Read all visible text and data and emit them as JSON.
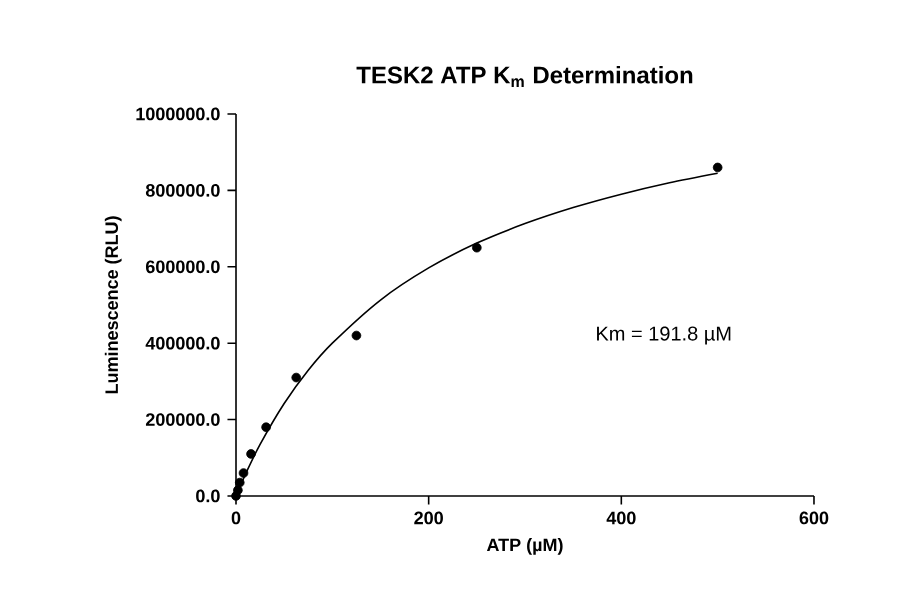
{
  "chart_data": {
    "type": "scatter",
    "title": "TESK2 ATP K$_{m}$ Determination",
    "xlabel": "ATP (µM)",
    "ylabel": "Luminescence (RLU)",
    "xlim": [
      0,
      600
    ],
    "xticks": [
      0,
      200,
      400,
      600
    ],
    "ylim": [
      0,
      1000000
    ],
    "yticks": [
      {
        "value": 0,
        "label": "0.0"
      },
      {
        "value": 200000,
        "label": "200000.0"
      },
      {
        "value": 400000,
        "label": "400000.0"
      },
      {
        "value": 600000,
        "label": "600000.0"
      },
      {
        "value": 800000,
        "label": "800000.0"
      },
      {
        "value": 1000000,
        "label": "1000000.0"
      }
    ],
    "grid": false,
    "series": [
      {
        "marker": "circle",
        "color": "#000000",
        "x": [
          0,
          1.95,
          3.9,
          7.8,
          15.6,
          31.25,
          62.5,
          125,
          250,
          500
        ],
        "values": [
          0,
          15000,
          35000,
          60000,
          110000,
          180000,
          310000,
          420000,
          650000,
          860000
        ]
      },
      {
        "type": "line",
        "marker": "none",
        "color": "#000000",
        "x": [
          0,
          10,
          25,
          50,
          75,
          100,
          150,
          200,
          250,
          300,
          350,
          400,
          450,
          500
        ],
        "values": [
          0,
          58000,
          135000,
          242000,
          329000,
          400000,
          513000,
          597000,
          662000,
          713000,
          755000,
          790000,
          820000,
          845000
        ]
      }
    ],
    "annotations": [
      "Km = 191.8 µM"
    ]
  }
}
